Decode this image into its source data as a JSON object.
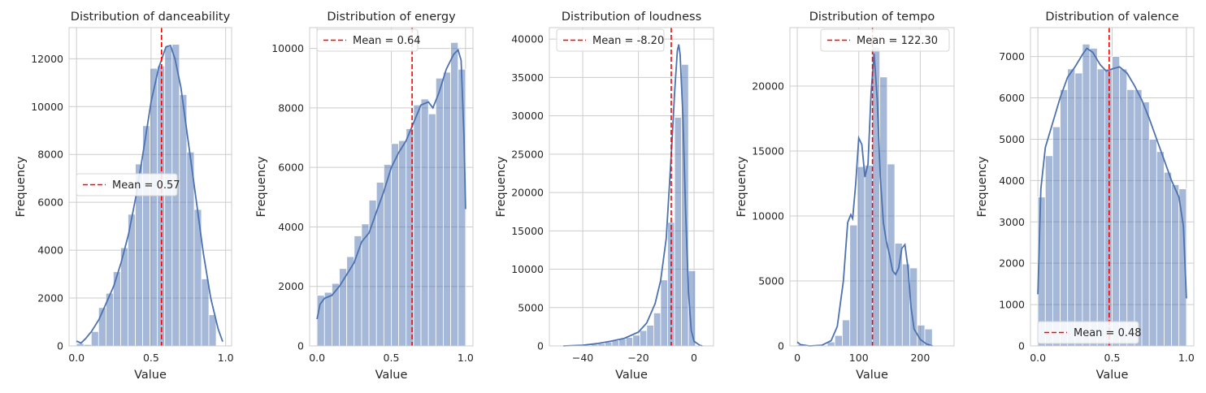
{
  "chart_data": [
    {
      "type": "bar",
      "title": "Distribution of danceability",
      "xlabel": "Value",
      "ylabel": "Frequency",
      "xlim": [
        -0.05,
        1.04
      ],
      "ylim": [
        0,
        13300
      ],
      "xticks": [
        0.0,
        0.5,
        1.0
      ],
      "xtick_labels": [
        "0.0",
        "0.5",
        "1.0"
      ],
      "yticks": [
        0,
        2000,
        4000,
        6000,
        8000,
        10000,
        12000
      ],
      "ytick_labels": [
        "0",
        "2000",
        "4000",
        "6000",
        "8000",
        "10000",
        "12000"
      ],
      "bin_edges": [
        0.0,
        0.0493,
        0.0986,
        0.1479,
        0.1972,
        0.2465,
        0.2958,
        0.3451,
        0.3944,
        0.4437,
        0.493,
        0.5423,
        0.5916,
        0.6409,
        0.6902,
        0.7395,
        0.7888,
        0.8381,
        0.8874,
        0.9367,
        0.986
      ],
      "values": [
        100,
        60,
        600,
        1600,
        2200,
        3100,
        4100,
        5500,
        7600,
        9200,
        11600,
        11700,
        12500,
        12600,
        10500,
        8100,
        5700,
        2800,
        1300,
        0
      ],
      "kde": [
        [
          0.0,
          200
        ],
        [
          0.03,
          120
        ],
        [
          0.06,
          300
        ],
        [
          0.1,
          600
        ],
        [
          0.15,
          1100
        ],
        [
          0.2,
          1800
        ],
        [
          0.25,
          2500
        ],
        [
          0.3,
          3500
        ],
        [
          0.35,
          4700
        ],
        [
          0.4,
          6300
        ],
        [
          0.45,
          8200
        ],
        [
          0.5,
          10200
        ],
        [
          0.55,
          11600
        ],
        [
          0.6,
          12500
        ],
        [
          0.63,
          12550
        ],
        [
          0.66,
          12000
        ],
        [
          0.7,
          10800
        ],
        [
          0.75,
          8500
        ],
        [
          0.8,
          6200
        ],
        [
          0.85,
          3900
        ],
        [
          0.9,
          2000
        ],
        [
          0.95,
          700
        ],
        [
          0.98,
          180
        ]
      ],
      "mean": 0.57,
      "legend_label": "Mean = 0.57",
      "legend_position": "center-left",
      "grid": true
    },
    {
      "type": "bar",
      "title": "Distribution of energy",
      "xlabel": "Value",
      "ylabel": "Frequency",
      "xlim": [
        -0.05,
        1.05
      ],
      "ylim": [
        0,
        10700
      ],
      "xticks": [
        0.0,
        0.5,
        1.0
      ],
      "xtick_labels": [
        "0.0",
        "0.5",
        "1.0"
      ],
      "yticks": [
        0,
        2000,
        4000,
        6000,
        8000,
        10000
      ],
      "ytick_labels": [
        "0",
        "2000",
        "4000",
        "6000",
        "8000",
        "10000"
      ],
      "bin_edges": [
        0.0,
        0.05,
        0.1,
        0.15,
        0.2,
        0.25,
        0.3,
        0.35,
        0.4,
        0.45,
        0.5,
        0.55,
        0.6,
        0.65,
        0.7,
        0.75,
        0.8,
        0.85,
        0.9,
        0.95,
        1.0
      ],
      "values": [
        1700,
        1800,
        2100,
        2600,
        3000,
        3700,
        4100,
        4900,
        5500,
        6100,
        6800,
        6900,
        7300,
        8100,
        8300,
        7800,
        9000,
        9200,
        10200,
        9300
      ],
      "kde": [
        [
          0.0,
          900
        ],
        [
          0.02,
          1400
        ],
        [
          0.05,
          1600
        ],
        [
          0.1,
          1700
        ],
        [
          0.15,
          2000
        ],
        [
          0.2,
          2400
        ],
        [
          0.25,
          2800
        ],
        [
          0.3,
          3500
        ],
        [
          0.35,
          3800
        ],
        [
          0.4,
          4500
        ],
        [
          0.45,
          5200
        ],
        [
          0.5,
          6000
        ],
        [
          0.55,
          6500
        ],
        [
          0.6,
          6900
        ],
        [
          0.65,
          7500
        ],
        [
          0.7,
          8100
        ],
        [
          0.75,
          8200
        ],
        [
          0.78,
          8000
        ],
        [
          0.82,
          8500
        ],
        [
          0.87,
          9300
        ],
        [
          0.92,
          9800
        ],
        [
          0.95,
          9950
        ],
        [
          0.97,
          9600
        ],
        [
          0.99,
          7000
        ],
        [
          1.0,
          4600
        ]
      ],
      "mean": 0.64,
      "legend_label": "Mean = 0.64",
      "legend_position": "top-left",
      "grid": true
    },
    {
      "type": "bar",
      "title": "Distribution of loudness",
      "xlabel": "Value",
      "ylabel": "Frequency",
      "xlim": [
        -52,
        7
      ],
      "ylim": [
        0,
        41500
      ],
      "xticks": [
        -40,
        -20,
        0
      ],
      "xtick_labels": [
        "−40",
        "−20",
        "0"
      ],
      "yticks": [
        0,
        5000,
        10000,
        15000,
        20000,
        25000,
        30000,
        35000,
        40000
      ],
      "ytick_labels": [
        "0",
        "5000",
        "10000",
        "15000",
        "20000",
        "25000",
        "30000",
        "35000",
        "40000"
      ],
      "bin_edges": [
        -47,
        -44.5,
        -42,
        -39.5,
        -37,
        -34.5,
        -32,
        -29.5,
        -27,
        -24.5,
        -22,
        -19.5,
        -17,
        -14.5,
        -12,
        -9.5,
        -7,
        -4.5,
        -2,
        0.5,
        3
      ],
      "values": [
        0,
        0,
        0,
        100,
        200,
        300,
        500,
        700,
        900,
        1100,
        1400,
        2000,
        2700,
        4300,
        8600,
        16100,
        29800,
        36700,
        9800,
        0
      ],
      "kde": [
        [
          -47,
          0
        ],
        [
          -40,
          100
        ],
        [
          -35,
          300
        ],
        [
          -30,
          600
        ],
        [
          -25,
          1000
        ],
        [
          -20,
          1800
        ],
        [
          -17,
          3000
        ],
        [
          -14,
          5500
        ],
        [
          -12,
          8500
        ],
        [
          -10,
          14000
        ],
        [
          -8,
          26000
        ],
        [
          -7,
          33000
        ],
        [
          -6,
          38500
        ],
        [
          -5.5,
          39300
        ],
        [
          -5,
          38000
        ],
        [
          -4,
          30000
        ],
        [
          -3,
          17000
        ],
        [
          -2,
          7000
        ],
        [
          -1,
          2000
        ],
        [
          0,
          600
        ],
        [
          2,
          100
        ],
        [
          3,
          0
        ]
      ],
      "mean": -8.2,
      "legend_label": "Mean = -8.20",
      "legend_position": "top-left",
      "grid": true
    },
    {
      "type": "bar",
      "title": "Distribution of tempo",
      "xlabel": "Value",
      "ylabel": "Frequency",
      "xlim": [
        -12,
        255
      ],
      "ylim": [
        0,
        24500
      ],
      "xticks": [
        0,
        100,
        200
      ],
      "xtick_labels": [
        "0",
        "100",
        "200"
      ],
      "yticks": [
        0,
        5000,
        10000,
        15000,
        20000
      ],
      "ytick_labels": [
        "0",
        "5000",
        "10000",
        "15000",
        "20000"
      ],
      "bin_edges": [
        0,
        12.2,
        24.4,
        36.6,
        48.8,
        61,
        73.2,
        85.4,
        97.6,
        109.8,
        122,
        134.2,
        146.4,
        158.6,
        170.8,
        183,
        195.2,
        207.4,
        219.6,
        231.8,
        244
      ],
      "values": [
        100,
        0,
        0,
        0,
        300,
        800,
        2000,
        9300,
        13800,
        13900,
        23000,
        20700,
        14000,
        7900,
        6300,
        6000,
        1600,
        1300,
        0,
        0
      ],
      "kde": [
        [
          0,
          300
        ],
        [
          5,
          100
        ],
        [
          20,
          0
        ],
        [
          40,
          50
        ],
        [
          55,
          400
        ],
        [
          65,
          1500
        ],
        [
          75,
          5000
        ],
        [
          82,
          9500
        ],
        [
          87,
          10100
        ],
        [
          90,
          9800
        ],
        [
          95,
          12500
        ],
        [
          100,
          16000
        ],
        [
          105,
          15500
        ],
        [
          110,
          13000
        ],
        [
          115,
          14000
        ],
        [
          120,
          19500
        ],
        [
          125,
          22500
        ],
        [
          130,
          19000
        ],
        [
          135,
          13000
        ],
        [
          140,
          9500
        ],
        [
          145,
          8000
        ],
        [
          150,
          7000
        ],
        [
          155,
          5800
        ],
        [
          160,
          5500
        ],
        [
          165,
          6000
        ],
        [
          170,
          7500
        ],
        [
          175,
          7800
        ],
        [
          180,
          6000
        ],
        [
          185,
          3000
        ],
        [
          190,
          1300
        ],
        [
          200,
          500
        ],
        [
          210,
          150
        ],
        [
          220,
          0
        ]
      ],
      "mean": 122.3,
      "legend_label": "Mean = 122.30",
      "legend_position": "top-right",
      "grid": true
    },
    {
      "type": "bar",
      "title": "Distribution of valence",
      "xlabel": "Value",
      "ylabel": "Frequency",
      "xlim": [
        -0.05,
        1.05
      ],
      "ylim": [
        0,
        7700
      ],
      "xticks": [
        0.0,
        0.5,
        1.0
      ],
      "xtick_labels": [
        "0.0",
        "0.5",
        "1.0"
      ],
      "yticks": [
        0,
        1000,
        2000,
        3000,
        4000,
        5000,
        6000,
        7000
      ],
      "ytick_labels": [
        "0",
        "1000",
        "2000",
        "3000",
        "4000",
        "5000",
        "6000",
        "7000"
      ],
      "bin_edges": [
        0.0,
        0.05,
        0.1,
        0.15,
        0.2,
        0.25,
        0.3,
        0.35,
        0.4,
        0.45,
        0.5,
        0.55,
        0.6,
        0.65,
        0.7,
        0.75,
        0.8,
        0.85,
        0.9,
        0.95,
        1.0
      ],
      "values": [
        3600,
        4600,
        5300,
        6200,
        6700,
        6600,
        7300,
        7200,
        6700,
        6700,
        7000,
        6700,
        6200,
        6200,
        5900,
        5000,
        4700,
        4200,
        3900,
        3800
      ],
      "kde": [
        [
          0.0,
          1250
        ],
        [
          0.02,
          3800
        ],
        [
          0.05,
          4800
        ],
        [
          0.1,
          5400
        ],
        [
          0.15,
          6000
        ],
        [
          0.2,
          6500
        ],
        [
          0.25,
          6750
        ],
        [
          0.3,
          7050
        ],
        [
          0.33,
          7200
        ],
        [
          0.37,
          7100
        ],
        [
          0.42,
          6800
        ],
        [
          0.46,
          6650
        ],
        [
          0.5,
          6700
        ],
        [
          0.55,
          6750
        ],
        [
          0.6,
          6600
        ],
        [
          0.65,
          6300
        ],
        [
          0.7,
          5950
        ],
        [
          0.75,
          5500
        ],
        [
          0.8,
          5000
        ],
        [
          0.85,
          4500
        ],
        [
          0.9,
          4000
        ],
        [
          0.95,
          3600
        ],
        [
          0.98,
          2900
        ],
        [
          1.0,
          1150
        ]
      ],
      "mean": 0.48,
      "legend_label": "Mean = 0.48",
      "legend_position": "bottom-left",
      "grid": true
    }
  ],
  "colors": {
    "bar_fill": "#4c72b0",
    "kde_line": "#4c72b0",
    "mean_line": "#ff0000",
    "grid": "#cccccc",
    "text": "#262626"
  }
}
